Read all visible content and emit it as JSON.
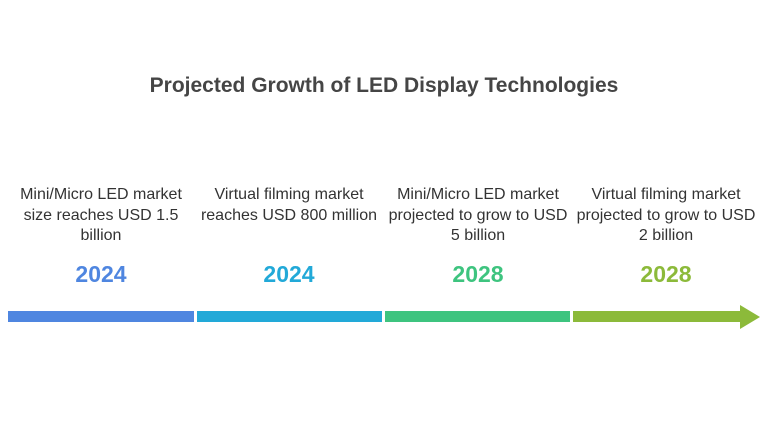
{
  "title": "Projected Growth of LED Display Technologies",
  "milestones": [
    {
      "description": "Mini/Micro LED market size reaches USD 1.5 billion",
      "year": "2024",
      "color": "#4f86e0"
    },
    {
      "description": "Virtual filming market reaches USD 800 million",
      "year": "2024",
      "color": "#22a9d8"
    },
    {
      "description": "Mini/Micro LED market projected to grow to USD 5 billion",
      "year": "2028",
      "color": "#3ec47f"
    },
    {
      "description": "Virtual filming market projected to grow to USD 2 billion",
      "year": "2028",
      "color": "#8cba3a"
    }
  ]
}
